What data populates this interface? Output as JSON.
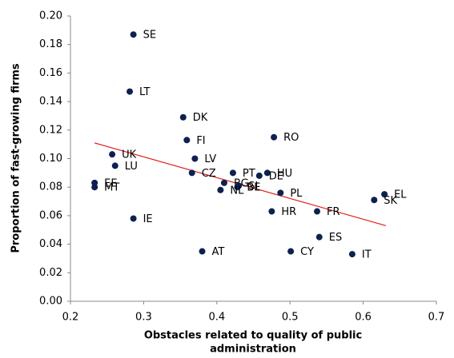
{
  "chart_data": {
    "type": "scatter",
    "x_label": [
      "Obstacles related to quality of public",
      "administration"
    ],
    "y_label": "Proportion of fast-growing firms",
    "xlim": [
      0.2,
      0.7
    ],
    "xticks": [
      0.2,
      0.3,
      0.4,
      0.5,
      0.6,
      0.7
    ],
    "ylim": [
      0,
      0.2
    ],
    "yticks": [
      {
        "value": 0,
        "label": "0.00"
      },
      {
        "value": 0.02,
        "label": "0.02"
      },
      {
        "value": 0.04,
        "label": "0.04"
      },
      {
        "value": 0.06,
        "label": "0.06"
      },
      {
        "value": 0.08,
        "label": "0.08"
      },
      {
        "value": 0.1,
        "label": "0.10"
      },
      {
        "value": 0.12,
        "label": "0.12"
      },
      {
        "value": 0.14,
        "label": "0.14"
      },
      {
        "value": 0.16,
        "label": "0.16"
      },
      {
        "value": 0.18,
        "label": "0.18"
      },
      {
        "value": 0.2,
        "label": "0.20"
      }
    ],
    "grid": false,
    "color": "#0d2050",
    "labels": [
      "SE",
      "LT",
      "DK",
      "RO",
      "FI",
      "UK",
      "LV",
      "LU",
      "CZ",
      "PT",
      "HU",
      "DE",
      "BG",
      "SI",
      "BE",
      "EE",
      "MT",
      "NL",
      "PL",
      "EL",
      "SK",
      "HR",
      "FR",
      "IE",
      "ES",
      "AT",
      "CY",
      "IT"
    ],
    "x": [
      0.286,
      0.281,
      0.354,
      0.478,
      0.359,
      0.257,
      0.37,
      0.261,
      0.366,
      0.422,
      0.469,
      0.458,
      0.41,
      0.43,
      0.428,
      0.233,
      0.233,
      0.405,
      0.487,
      0.629,
      0.615,
      0.475,
      0.537,
      0.286,
      0.54,
      0.38,
      0.501,
      0.585
    ],
    "y": [
      0.187,
      0.147,
      0.129,
      0.115,
      0.113,
      0.103,
      0.1,
      0.095,
      0.09,
      0.09,
      0.09,
      0.088,
      0.083,
      0.081,
      0.08,
      0.083,
      0.08,
      0.078,
      0.076,
      0.075,
      0.071,
      0.063,
      0.063,
      0.058,
      0.045,
      0.035,
      0.035,
      0.033
    ],
    "trendline": {
      "color": "#e0201c",
      "x": [
        0.233,
        0.631
      ],
      "y": [
        0.111,
        0.053
      ]
    }
  }
}
